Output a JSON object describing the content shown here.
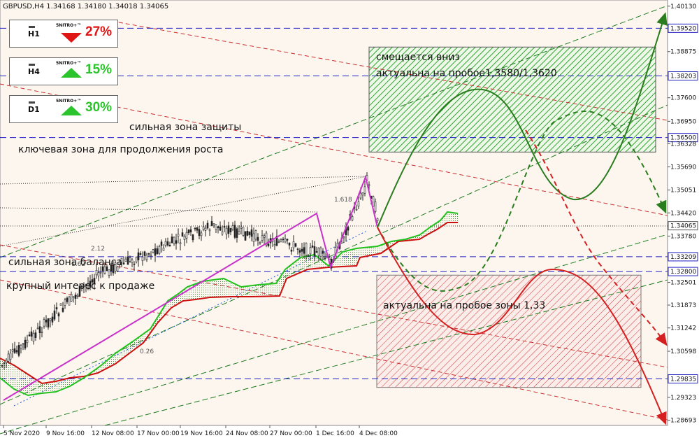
{
  "symbol_header": "GBPUSD,H4  1.34168 1.34180 1.34018 1.34065",
  "panels": [
    {
      "timeframe": "H1",
      "brand": "5NITRO+™",
      "direction": "down",
      "percent": "27%",
      "color": "#e01515"
    },
    {
      "timeframe": "H4",
      "brand": "5NITRO+™",
      "direction": "up",
      "percent": "15%",
      "color": "#2cc42c"
    },
    {
      "timeframe": "D1",
      "brand": "5NITRO+™",
      "direction": "up",
      "percent": "30%",
      "color": "#2cc42c"
    }
  ],
  "annotations": {
    "strong_protection_zone": "сильная зона защиты",
    "key_zone_growth": "ключевая зона для продолжения роста",
    "strong_balance_zone": "сильная зона баланса",
    "major_selling_interest": "крупный интерес к продаже",
    "green_zone_line1": "смещается вниз",
    "green_zone_line2": "актуальна на пробое1,3580/1,3620",
    "red_zone_text": "актуальна на пробое зоны 1,33"
  },
  "chart_data": {
    "type": "candlestick",
    "symbol": "GBPUSD",
    "timeframe": "H4",
    "ohlc_last": {
      "open": 1.34168,
      "high": 1.3418,
      "low": 1.34018,
      "close": 1.34065
    },
    "ylim": [
      1.2855,
      1.403
    ],
    "y_ticks": [
      1.4013,
      1.3952,
      1.38875,
      1.38203,
      1.376,
      1.3695,
      1.365,
      1.36328,
      1.3569,
      1.35051,
      1.3442,
      1.34065,
      1.3378,
      1.33209,
      1.328,
      1.32501,
      1.31873,
      1.31242,
      1.30598,
      1.29835,
      1.29323,
      1.28693
    ],
    "highlighted_levels": [
      {
        "value": 1.3952,
        "label": "1.39520",
        "style": "dashed",
        "color": "#1f1fbf"
      },
      {
        "value": 1.38203,
        "label": "1.38203",
        "style": "dashed",
        "color": "#1f1fbf"
      },
      {
        "value": 1.365,
        "label": "1.36500",
        "style": "dashed",
        "color": "#1f1fbf"
      },
      {
        "value": 1.33209,
        "label": "1.33209",
        "style": "dashed",
        "color": "#1f1fbf"
      },
      {
        "value": 1.328,
        "label": "1.32800",
        "style": "dashed",
        "color": "#1f1fbf"
      },
      {
        "value": 1.29835,
        "label": "1.29835",
        "style": "dashed",
        "color": "#1f1fbf"
      }
    ],
    "current_price": {
      "value": 1.34065,
      "label": "1.34065"
    },
    "x_ticks": [
      "5 Nov 2020",
      "9 Nov 16:00",
      "12 Nov 08:00",
      "17 Nov 00:00",
      "19 Nov 16:00",
      "24 Nov 08:00",
      "27 Nov 00:00",
      "1 Dec 16:00",
      "4 Dec 08:00"
    ],
    "fib_labels": [
      "2.12",
      "1.618",
      "1.62",
      "0.26"
    ],
    "green_zone": {
      "from": 1.361,
      "to": 1.39,
      "color": "#2fa52f"
    },
    "red_zone": {
      "from": 1.296,
      "to": 1.327,
      "color": "#d43030"
    },
    "colors": {
      "bullish_path": "#2a7d1e",
      "bearish_path": "#d42020",
      "pattern": "#c832c8",
      "cloud_green": "#22c21e",
      "cloud_red": "#cc1010",
      "background": "#fdf6ef"
    }
  }
}
